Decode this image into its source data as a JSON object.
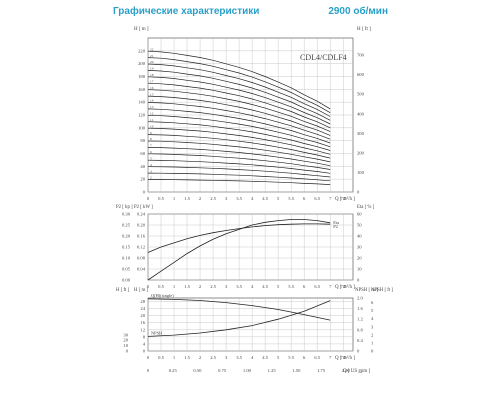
{
  "header": {
    "title": "Графические характеристики",
    "speed": "2900 об/мин"
  },
  "chart_data": [
    {
      "type": "line",
      "model_label": "CDL4/CDLF4",
      "x_axis": {
        "label": "Q [ m³/h ]",
        "min": 0,
        "max": 8,
        "ticks": [
          0,
          0.5,
          1,
          1.5,
          2,
          2.5,
          3,
          3.5,
          4,
          4.5,
          5,
          5.5,
          6,
          6.5,
          7,
          7.5
        ]
      },
      "y_left": {
        "label": "H [ m ]",
        "min": 0,
        "max": 240,
        "ticks": [
          0,
          20,
          40,
          60,
          80,
          100,
          120,
          140,
          160,
          180,
          200,
          220
        ]
      },
      "y_right": {
        "label": "H [ ft ]",
        "ticks": [
          0,
          100,
          200,
          300,
          400,
          500,
          600,
          700
        ]
      },
      "series": [
        {
          "name": "2",
          "shutoff": 19.5
        },
        {
          "name": "3",
          "shutoff": 29.5
        },
        {
          "name": "4",
          "shutoff": 39.5
        },
        {
          "name": "5",
          "shutoff": 49.5
        },
        {
          "name": "6",
          "shutoff": 59.5
        },
        {
          "name": "7",
          "shutoff": 69.5
        },
        {
          "name": "8",
          "shutoff": 79.5
        },
        {
          "name": "9",
          "shutoff": 89.5
        },
        {
          "name": "10",
          "shutoff": 99.5
        },
        {
          "name": "11",
          "shutoff": 109.5
        },
        {
          "name": "12",
          "shutoff": 119.5
        },
        {
          "name": "13",
          "shutoff": 129.5
        },
        {
          "name": "14",
          "shutoff": 139.5
        },
        {
          "name": "15",
          "shutoff": 149.5
        },
        {
          "name": "16",
          "shutoff": 159.5
        },
        {
          "name": "17",
          "shutoff": 169.5
        },
        {
          "name": "18",
          "shutoff": 179.5
        },
        {
          "name": "19",
          "shutoff": 189.5
        },
        {
          "name": "20",
          "shutoff": 199.5
        },
        {
          "name": "21",
          "shutoff": 209.5
        },
        {
          "name": "22",
          "shutoff": 219.5
        }
      ],
      "curve_shape": {
        "x": [
          0,
          0.5,
          1,
          1.5,
          2,
          2.5,
          3,
          3.5,
          4,
          4.5,
          5,
          5.5,
          6,
          6.5,
          7
        ],
        "factor": [
          1,
          0.995,
          0.985,
          0.97,
          0.955,
          0.935,
          0.91,
          0.885,
          0.855,
          0.82,
          0.78,
          0.74,
          0.69,
          0.645,
          0.59
        ]
      }
    },
    {
      "type": "line",
      "x_axis": {
        "label": "Q [ m³/h ]",
        "ticks": [
          0,
          0.5,
          1,
          1.5,
          2,
          2.5,
          3,
          3.5,
          4,
          4.5,
          5,
          5.5,
          6,
          6.5,
          7,
          7.5
        ]
      },
      "y_left_hp": {
        "label": "P2 [ hp ]",
        "ticks": [
          "0.00",
          "0.05",
          "0.10",
          "0.15",
          "0.20",
          "0.25",
          "0.30"
        ]
      },
      "y_left_kw": {
        "label": "P2 [ kW ]",
        "ticks": [
          "0.04",
          "0.08",
          "0.12",
          "0.16",
          "0.20",
          "0.24"
        ]
      },
      "y_right": {
        "label": "Eta [ % ]",
        "ticks": [
          0,
          10,
          20,
          30,
          40,
          50,
          60
        ]
      },
      "series": [
        {
          "name": "Eta",
          "x": [
            0,
            0.5,
            1,
            1.5,
            2,
            2.5,
            3,
            3.5,
            4,
            4.5,
            5,
            5.5,
            6,
            6.5,
            7
          ],
          "y": [
            0,
            8,
            16,
            24,
            31,
            37,
            42,
            46,
            50,
            52.5,
            54,
            55,
            55,
            54,
            52
          ]
        },
        {
          "name": "P2",
          "x": [
            0,
            0.5,
            1,
            1.5,
            2,
            2.5,
            3,
            3.5,
            4,
            4.5,
            5,
            5.5,
            6,
            6.5,
            7
          ],
          "y": [
            0.1,
            0.12,
            0.135,
            0.15,
            0.162,
            0.172,
            0.18,
            0.187,
            0.193,
            0.198,
            0.201,
            0.203,
            0.204,
            0.204,
            0.203
          ]
        }
      ]
    },
    {
      "type": "line",
      "x_axis": {
        "label": "Q [ m³/h ]",
        "ticks": [
          0,
          0.5,
          1,
          1.5,
          2,
          2.5,
          3,
          3.5,
          4,
          4.5,
          5,
          5.5,
          6,
          6.5,
          7,
          7.5
        ]
      },
      "x_axis_secondary": {
        "label": "Q [ US gpm ]",
        "ticks": [
          "0",
          "0.25",
          "0.50",
          "0.75",
          "1.00",
          "1.25",
          "1.50",
          "1.75",
          "2.00"
        ]
      },
      "y_left_ft": {
        "label": "H [ ft ]",
        "ticks": [
          0,
          10,
          20,
          30
        ]
      },
      "y_left_m": {
        "label": "H [ m ]",
        "ticks": [
          0,
          4,
          8,
          12,
          16,
          20,
          24,
          28
        ]
      },
      "y_right_m": {
        "label": "NPSH [ m ]",
        "ticks": [
          "0",
          "0.4",
          "0.8",
          "1.2",
          "1.6",
          "2.0"
        ]
      },
      "y_right_ft": {
        "label": "NPSH [ ft ]",
        "ticks": [
          0,
          1,
          2,
          3,
          4,
          5,
          6
        ]
      },
      "series": [
        {
          "name": "Q(H)(single)",
          "x": [
            0,
            1,
            2,
            3,
            4,
            5,
            6,
            7
          ],
          "y": [
            29.5,
            29.2,
            28.6,
            27.4,
            25.7,
            23.5,
            20.6,
            17.5
          ]
        },
        {
          "name": "NPSH",
          "x": [
            0,
            1,
            2,
            3,
            4,
            5,
            6,
            7
          ],
          "y": [
            0.55,
            0.6,
            0.68,
            0.8,
            0.96,
            1.2,
            1.5,
            1.9
          ]
        }
      ]
    }
  ]
}
